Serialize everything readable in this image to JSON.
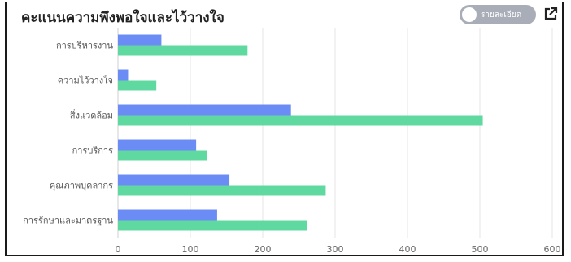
{
  "header": {
    "title": "คะแนนความพึงพอใจและไว้วางใจ",
    "toggle_label": "รายละเอียด",
    "external_icon": "external-link-icon"
  },
  "chart_data": {
    "type": "bar",
    "orientation": "horizontal",
    "categories": [
      "การบริหารงาน",
      "ความไว้วางใจ",
      "สิ่งแวดล้อม",
      "การบริการ",
      "คุณภาพบุคลากร",
      "การรักษาและมาตรฐาน"
    ],
    "series": [
      {
        "color": "#6b8cf5",
        "values": [
          60,
          14,
          239,
          108,
          154,
          137
        ]
      },
      {
        "color": "#5fd9a0",
        "values": [
          179,
          53,
          504,
          123,
          287,
          261
        ]
      }
    ],
    "xlim": [
      0,
      600
    ],
    "xticks": [
      "0",
      "100",
      "200",
      "300",
      "400",
      "500",
      "600"
    ],
    "grid": true
  }
}
